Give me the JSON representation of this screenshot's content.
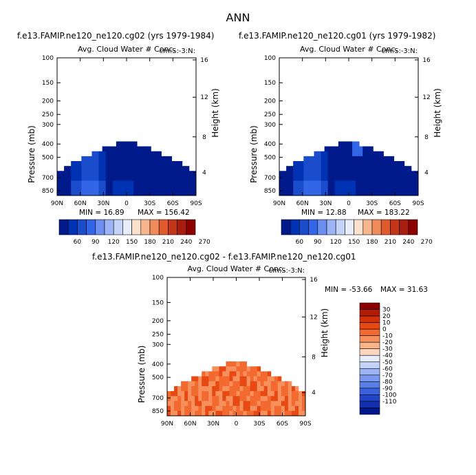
{
  "page": {
    "title": "ANN"
  },
  "chart_data": [
    {
      "type": "heatmap",
      "title": "f.e13.FAMIP.ne120_ne120.cg02 (yrs 1979-1984)",
      "subtitle": "Avg. Cloud Water # Conc.",
      "units_label": "cm:S:-3:N:",
      "xlabel": "",
      "ylabel": "Pressure (mb)",
      "y2label": "Height (km)",
      "x_ticks": [
        "90N",
        "60N",
        "30N",
        "0",
        "30S",
        "60S",
        "90S"
      ],
      "y_ticks": [
        "100",
        "150",
        "200",
        "250",
        "300",
        "400",
        "500",
        "700",
        "850"
      ],
      "y2_ticks": [
        "16",
        "12",
        "8",
        "4"
      ],
      "min": 16.89,
      "max": 156.42,
      "min_text": "MIN =   16.89",
      "max_text": "MAX =  156.42",
      "colorbar": {
        "labels": [
          "60",
          "90",
          "120",
          "150",
          "180",
          "210",
          "240",
          "270"
        ],
        "colors": [
          "#001a8c",
          "#0033b3",
          "#1a4ccc",
          "#3366e6",
          "#6b8ef0",
          "#9cb4f5",
          "#c4d4f9",
          "#e8eef9",
          "#fde1cf",
          "#f8b68f",
          "#f08c5c",
          "#e05a2d",
          "#c4361a",
          "#a81d0f",
          "#8b0000"
        ]
      }
    },
    {
      "type": "heatmap",
      "title": "f.e13.FAMIP.ne120_ne120.cg01 (yrs 1979-1982)",
      "subtitle": "Avg. Cloud Water # Conc.",
      "units_label": "cm:S:-3:N:",
      "xlabel": "",
      "ylabel": "Pressure (mb)",
      "y2label": "Height (km)",
      "x_ticks": [
        "90N",
        "60N",
        "30N",
        "0",
        "30S",
        "60S",
        "90S"
      ],
      "y_ticks": [
        "100",
        "150",
        "200",
        "250",
        "300",
        "400",
        "500",
        "700",
        "850"
      ],
      "y2_ticks": [
        "16",
        "12",
        "8",
        "4"
      ],
      "min": 12.88,
      "max": 183.22,
      "min_text": "MIN =   12.88",
      "max_text": "MAX =  183.22",
      "colorbar": {
        "labels": [
          "60",
          "90",
          "120",
          "150",
          "180",
          "210",
          "240",
          "270"
        ],
        "colors": [
          "#001a8c",
          "#0033b3",
          "#1a4ccc",
          "#3366e6",
          "#6b8ef0",
          "#9cb4f5",
          "#c4d4f9",
          "#e8eef9",
          "#fde1cf",
          "#f8b68f",
          "#f08c5c",
          "#e05a2d",
          "#c4361a",
          "#a81d0f",
          "#8b0000"
        ]
      }
    },
    {
      "type": "heatmap",
      "title": "f.e13.FAMIP.ne120_ne120.cg02 - f.e13.FAMIP.ne120_ne120.cg01",
      "subtitle": "Avg. Cloud Water # Conc.",
      "units_label": "cm:S:-3:N:",
      "xlabel": "",
      "ylabel": "Pressure (mb)",
      "y2label": "Height (km)",
      "x_ticks": [
        "90N",
        "60N",
        "30N",
        "0",
        "30S",
        "60S",
        "90S"
      ],
      "y_ticks": [
        "100",
        "150",
        "200",
        "250",
        "300",
        "400",
        "500",
        "700",
        "850"
      ],
      "y2_ticks": [
        "16",
        "12",
        "8",
        "4"
      ],
      "min": -53.66,
      "max": 31.63,
      "min_text": "MIN = -53.66",
      "max_text": "MAX =  31.63",
      "colorbar": {
        "labels": [
          "30",
          "20",
          "10",
          "0",
          "-10",
          "-20",
          "-30",
          "-40",
          "-50",
          "-60",
          "-70",
          "-80",
          "-90",
          "-100",
          "-110"
        ],
        "colors": [
          "#8b0000",
          "#b01c08",
          "#d0300a",
          "#e84812",
          "#f26a30",
          "#f6905c",
          "#f9b48a",
          "#fcd6be",
          "#e8eef9",
          "#c4d4f9",
          "#9cb4f5",
          "#7a98f0",
          "#5a7ee8",
          "#3a60dc",
          "#2244c8",
          "#1430b0",
          "#00168c"
        ]
      }
    }
  ]
}
